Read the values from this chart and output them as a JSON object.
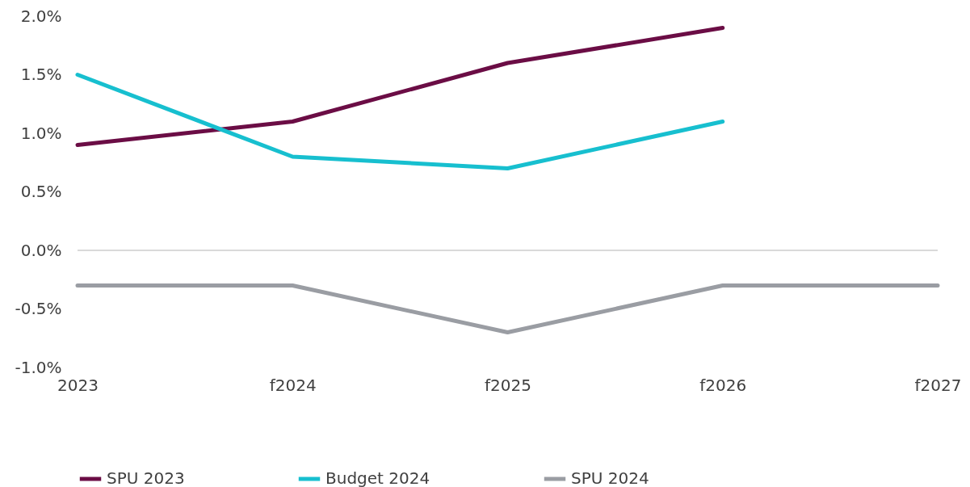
{
  "chart_data": {
    "type": "line",
    "categories": [
      "2023",
      "f2024",
      "f2025",
      "f2026",
      "f2027"
    ],
    "series": [
      {
        "name": "SPU 2023",
        "color": "#6b0d45",
        "values": [
          0.9,
          1.1,
          1.6,
          1.9,
          null
        ]
      },
      {
        "name": "Budget 2024",
        "color": "#17bfcf",
        "values": [
          1.5,
          0.8,
          0.7,
          1.1,
          null
        ]
      },
      {
        "name": "SPU 2024",
        "color": "#9a9da3",
        "values": [
          -0.3,
          -0.3,
          -0.7,
          -0.3,
          -0.3
        ]
      }
    ],
    "ylim": [
      -1.0,
      2.0
    ],
    "yticks": [
      {
        "value": -1.0,
        "label": "-1.0%"
      },
      {
        "value": -0.5,
        "label": "-0.5%"
      },
      {
        "value": 0.0,
        "label": "0.0%"
      },
      {
        "value": 0.5,
        "label": "0.5%"
      },
      {
        "value": 1.0,
        "label": "1.0%"
      },
      {
        "value": 1.5,
        "label": "1.5%"
      },
      {
        "value": 2.0,
        "label": "2.0%"
      }
    ],
    "ref_lines": [
      {
        "axis": "y",
        "value": 0,
        "color": "#d9d9d9"
      }
    ],
    "grid": false,
    "legend": "bottom",
    "marker": "none",
    "line_style": "solid"
  }
}
